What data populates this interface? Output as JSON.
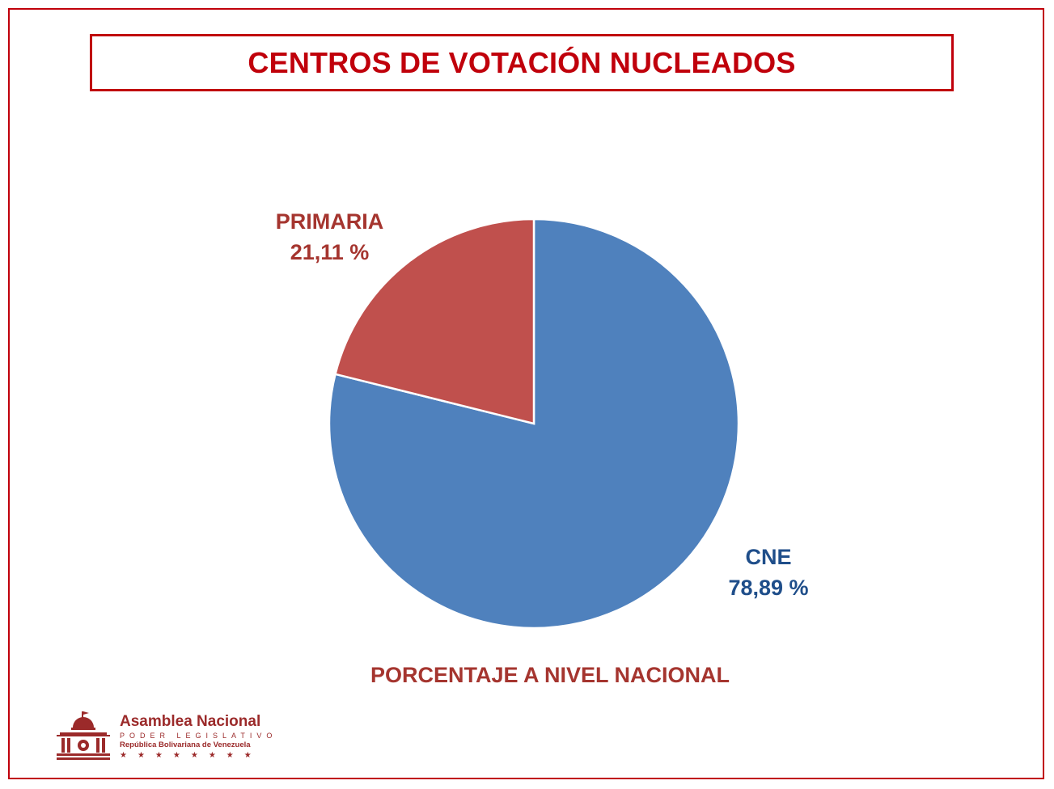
{
  "title": "CENTROS DE VOTACIÓN NUCLEADOS",
  "subtitle": "PORCENTAJE A NIVEL NACIONAL",
  "chart_data": {
    "type": "pie",
    "title": "CENTROS DE VOTACIÓN NUCLEADOS",
    "subtitle": "PORCENTAJE A NIVEL NACIONAL",
    "slices": [
      {
        "label": "CNE",
        "value": 78.89,
        "value_text": "78,89 %",
        "color": "#4f81bd",
        "label_color": "#1f4e8a"
      },
      {
        "label": "PRIMARIA",
        "value": 21.11,
        "value_text": "21,11 %",
        "color": "#c0504d",
        "label_color": "#a5352f"
      }
    ]
  },
  "logo": {
    "name": "Asamblea Nacional",
    "sub": "PODER LEGISLATIVO",
    "country": "República Bolivariana de Venezuela",
    "stars": "★★★★★★★★",
    "color": "#9b2a2a"
  },
  "colors": {
    "frame": "#c0000b",
    "title": "#c0000b"
  }
}
